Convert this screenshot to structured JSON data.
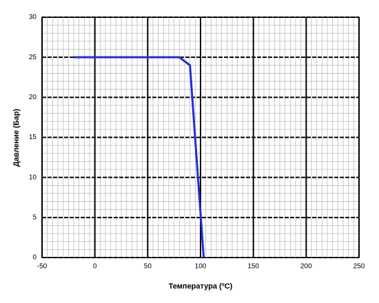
{
  "chart_data": {
    "type": "line",
    "x_label": "Температура (ºC)",
    "y_label": "Давление  (Бар)",
    "x": [
      -20,
      80,
      90,
      103
    ],
    "values": [
      25,
      25,
      24,
      0
    ],
    "color": "#1f2fd6",
    "xlim": [
      -50,
      250
    ],
    "xticks": [
      -50,
      0,
      50,
      100,
      150,
      200,
      250
    ],
    "ylim": [
      0,
      30
    ],
    "yticks": [
      0,
      5,
      10,
      15,
      20,
      25,
      30
    ],
    "grid": true,
    "minor_grid": true
  }
}
